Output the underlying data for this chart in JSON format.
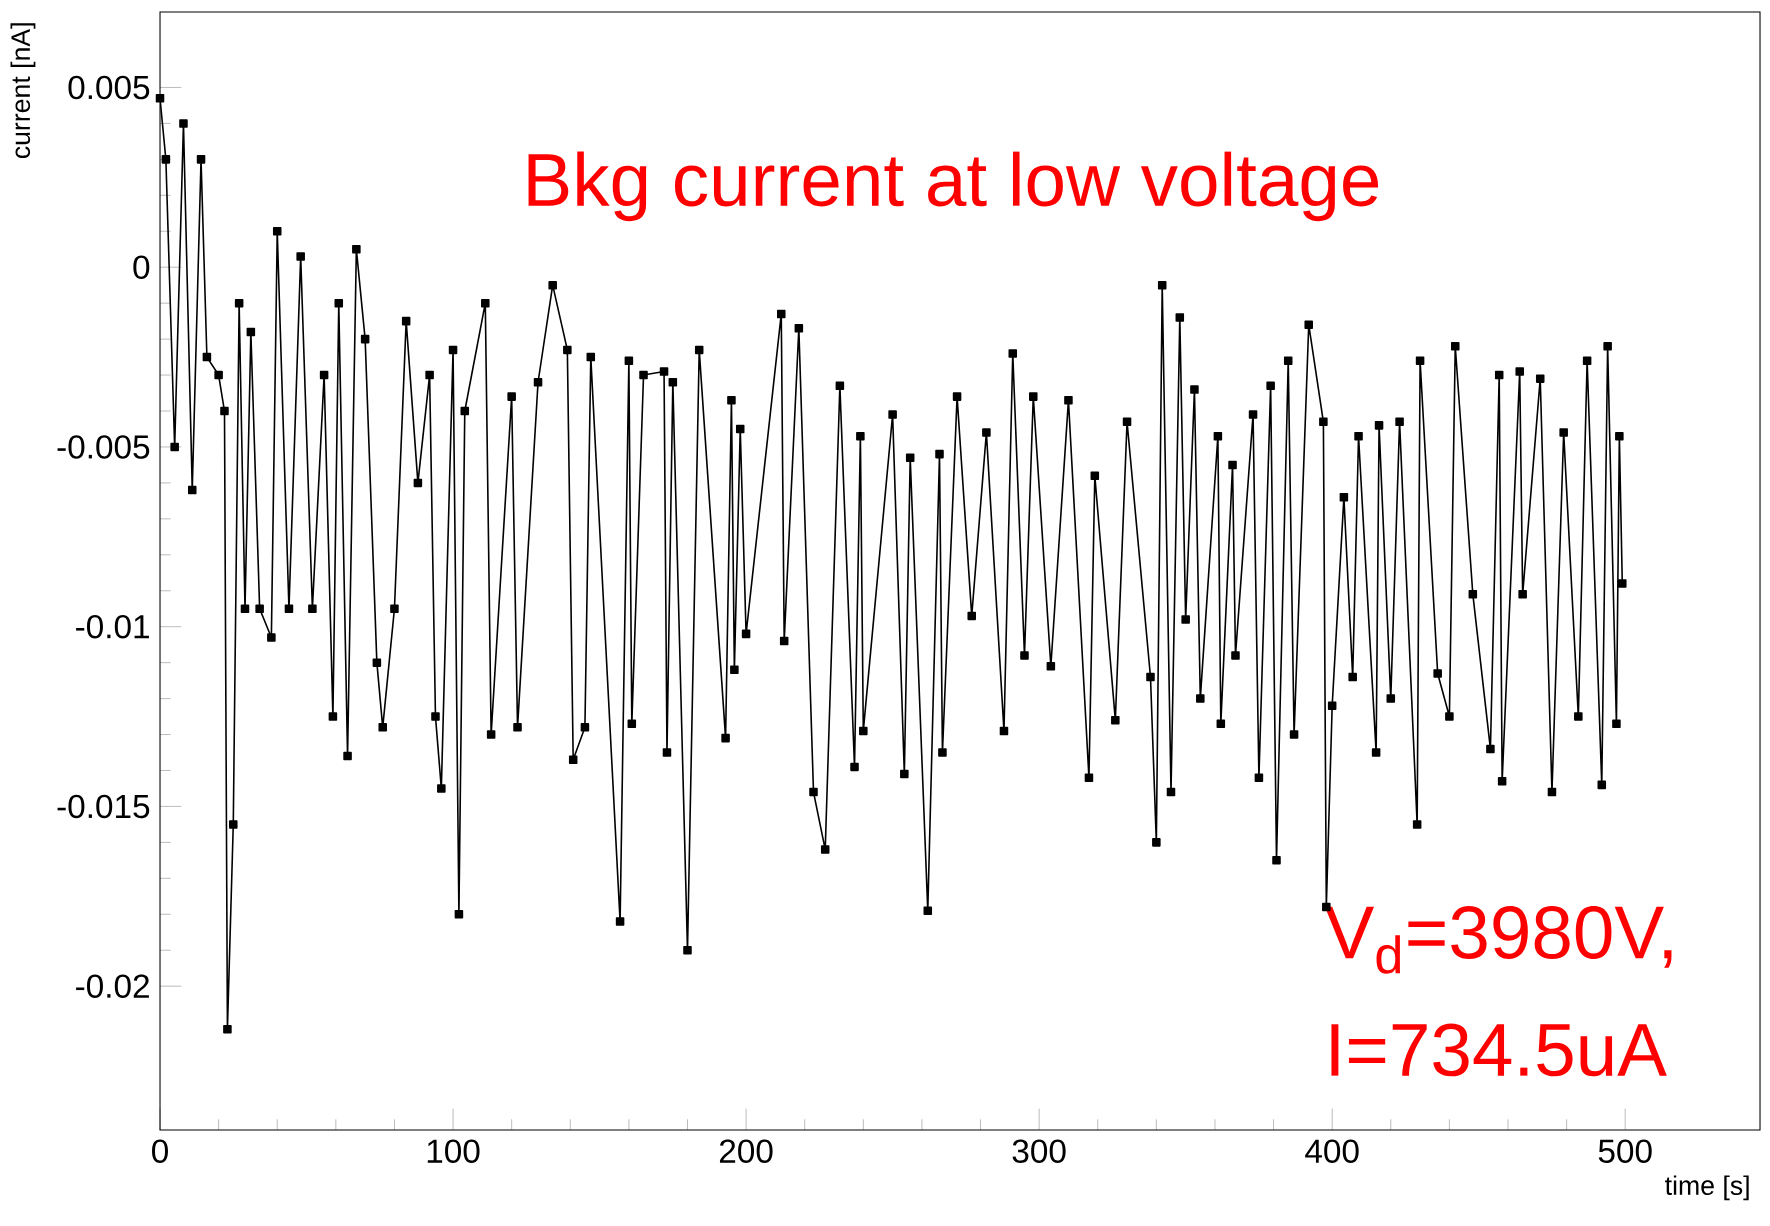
{
  "chart_data": {
    "type": "line",
    "xlabel": "time [s]",
    "ylabel": "current [nA]",
    "annotations": [
      "Bkg current at low voltage",
      "V$_{d}$=3980V,",
      "I=734.5uA"
    ],
    "series": [
      {
        "color": "#000000",
        "x": [
          0,
          2,
          5,
          8,
          11,
          14,
          16,
          20,
          22,
          23,
          25,
          27,
          29,
          31,
          34,
          38,
          40,
          44,
          48,
          52,
          56,
          59,
          61,
          64,
          67,
          70,
          74,
          76,
          80,
          84,
          88,
          92,
          94,
          96,
          100,
          102,
          104,
          111,
          113,
          120,
          122,
          129,
          134,
          139,
          141,
          145,
          147,
          157,
          160,
          161,
          165,
          172,
          173,
          175,
          180,
          184,
          193,
          195,
          196,
          198,
          200,
          212,
          213,
          218,
          223,
          227,
          232,
          237,
          239,
          240,
          250,
          254,
          256,
          262,
          266,
          267,
          272,
          277,
          282,
          288,
          291,
          295,
          298,
          304,
          310,
          317,
          319,
          326,
          330,
          338,
          340,
          342,
          345,
          348,
          350,
          353,
          355,
          361,
          362,
          366,
          367,
          373,
          375,
          379,
          381,
          385,
          387,
          392,
          397,
          398,
          400,
          404,
          407,
          409,
          415,
          416,
          420,
          423,
          429,
          430,
          436,
          440,
          442,
          448,
          454,
          457,
          458,
          464,
          465,
          471,
          475,
          479,
          484,
          487,
          492,
          494,
          497,
          498,
          499
        ],
        "values": [
          0.0047,
          0.003,
          -0.005,
          0.004,
          -0.0062,
          0.003,
          -0.0025,
          -0.003,
          -0.004,
          -0.0212,
          -0.0155,
          -0.001,
          -0.0095,
          -0.0018,
          -0.0095,
          -0.0103,
          0.001,
          -0.0095,
          0.0003,
          -0.0095,
          -0.003,
          -0.0125,
          -0.001,
          -0.0136,
          0.0005,
          -0.002,
          -0.011,
          -0.0128,
          -0.0095,
          -0.0015,
          -0.006,
          -0.003,
          -0.0125,
          -0.0145,
          -0.0023,
          -0.018,
          -0.004,
          -0.001,
          -0.013,
          -0.0036,
          -0.0128,
          -0.0032,
          -0.0005,
          -0.0023,
          -0.0137,
          -0.0128,
          -0.0025,
          -0.0182,
          -0.0026,
          -0.0127,
          -0.003,
          -0.0029,
          -0.0135,
          -0.0032,
          -0.019,
          -0.0023,
          -0.0131,
          -0.0037,
          -0.0112,
          -0.0045,
          -0.0102,
          -0.0013,
          -0.0104,
          -0.0017,
          -0.0146,
          -0.0162,
          -0.0033,
          -0.0139,
          -0.0047,
          -0.0129,
          -0.0041,
          -0.0141,
          -0.0053,
          -0.0179,
          -0.0052,
          -0.0135,
          -0.0036,
          -0.0097,
          -0.0046,
          -0.0129,
          -0.0024,
          -0.0108,
          -0.0036,
          -0.0111,
          -0.0037,
          -0.0142,
          -0.0058,
          -0.0126,
          -0.0043,
          -0.0114,
          -0.016,
          -0.0005,
          -0.0146,
          -0.0014,
          -0.0098,
          -0.0034,
          -0.012,
          -0.0047,
          -0.0127,
          -0.0055,
          -0.0108,
          -0.0041,
          -0.0142,
          -0.0033,
          -0.0165,
          -0.0026,
          -0.013,
          -0.0016,
          -0.0043,
          -0.0178,
          -0.0122,
          -0.0064,
          -0.0114,
          -0.0047,
          -0.0135,
          -0.0044,
          -0.012,
          -0.0043,
          -0.0155,
          -0.0026,
          -0.0113,
          -0.0125,
          -0.0022,
          -0.0091,
          -0.0134,
          -0.003,
          -0.0143,
          -0.0029,
          -0.0091,
          -0.0031,
          -0.0146,
          -0.0046,
          -0.0125,
          -0.0026,
          -0.0144,
          -0.0022,
          -0.0127,
          -0.0047,
          -0.0088
        ]
      }
    ],
    "xlim": [
      0,
      546
    ],
    "ylim": [
      -0.024,
      0.0071
    ],
    "xticks": [
      0,
      100,
      200,
      300,
      400,
      500
    ],
    "yticks": [
      0.005,
      0,
      -0.005,
      -0.01,
      -0.015,
      -0.02
    ],
    "marker": "square",
    "line_style": "solid",
    "grid": false
  }
}
